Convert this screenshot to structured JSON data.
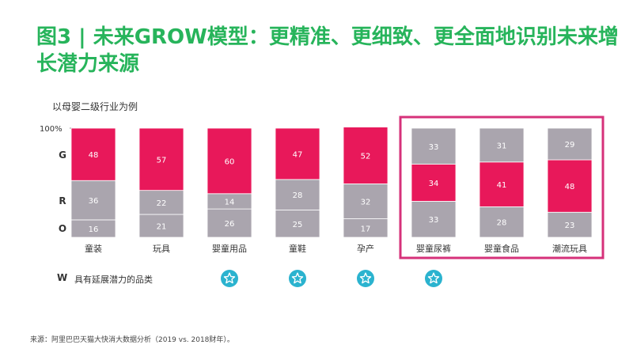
{
  "title": "图3 | 未来GROW模型：更精准、更细致、更全面地识别未来增长潜力来源",
  "subtitle": "以母婴二级行业为例",
  "y_top_label": "100%",
  "row_labels": {
    "G": "G",
    "R": "R",
    "O": "O"
  },
  "w_row": {
    "letter": "W",
    "label": "具有延展潜力的品类"
  },
  "source": "来源：阿里巴巴天猫大快消大数据分析（2019 vs. 2018财年）。",
  "colors": {
    "grey": "#aaa5ae",
    "pink": "#e8185a",
    "highlight": "#d6317a",
    "star": "#2bb3cf",
    "title": "#27b45b"
  },
  "chart_data": {
    "type": "bar",
    "stacked": true,
    "percent": true,
    "categories": [
      "童装",
      "玩具",
      "婴童用品",
      "童鞋",
      "孕产",
      "婴童尿裤",
      "婴童食品",
      "潮流玩具"
    ],
    "series": [
      {
        "name": "O",
        "values": [
          16,
          21,
          26,
          25,
          17,
          33,
          28,
          23
        ]
      },
      {
        "name": "R",
        "values": [
          36,
          22,
          14,
          28,
          32,
          34,
          41,
          48
        ]
      },
      {
        "name": "G",
        "values": [
          48,
          57,
          60,
          47,
          52,
          33,
          31,
          29
        ]
      }
    ],
    "pink_series": [
      "G",
      "G",
      "G",
      "G",
      "G",
      "R",
      "R",
      "R"
    ],
    "w_stars": [
      false,
      false,
      true,
      true,
      true,
      true,
      false,
      false
    ],
    "highlighted": [
      "婴童尿裤",
      "婴童食品",
      "潮流玩具"
    ],
    "ylim": [
      0,
      100
    ]
  }
}
